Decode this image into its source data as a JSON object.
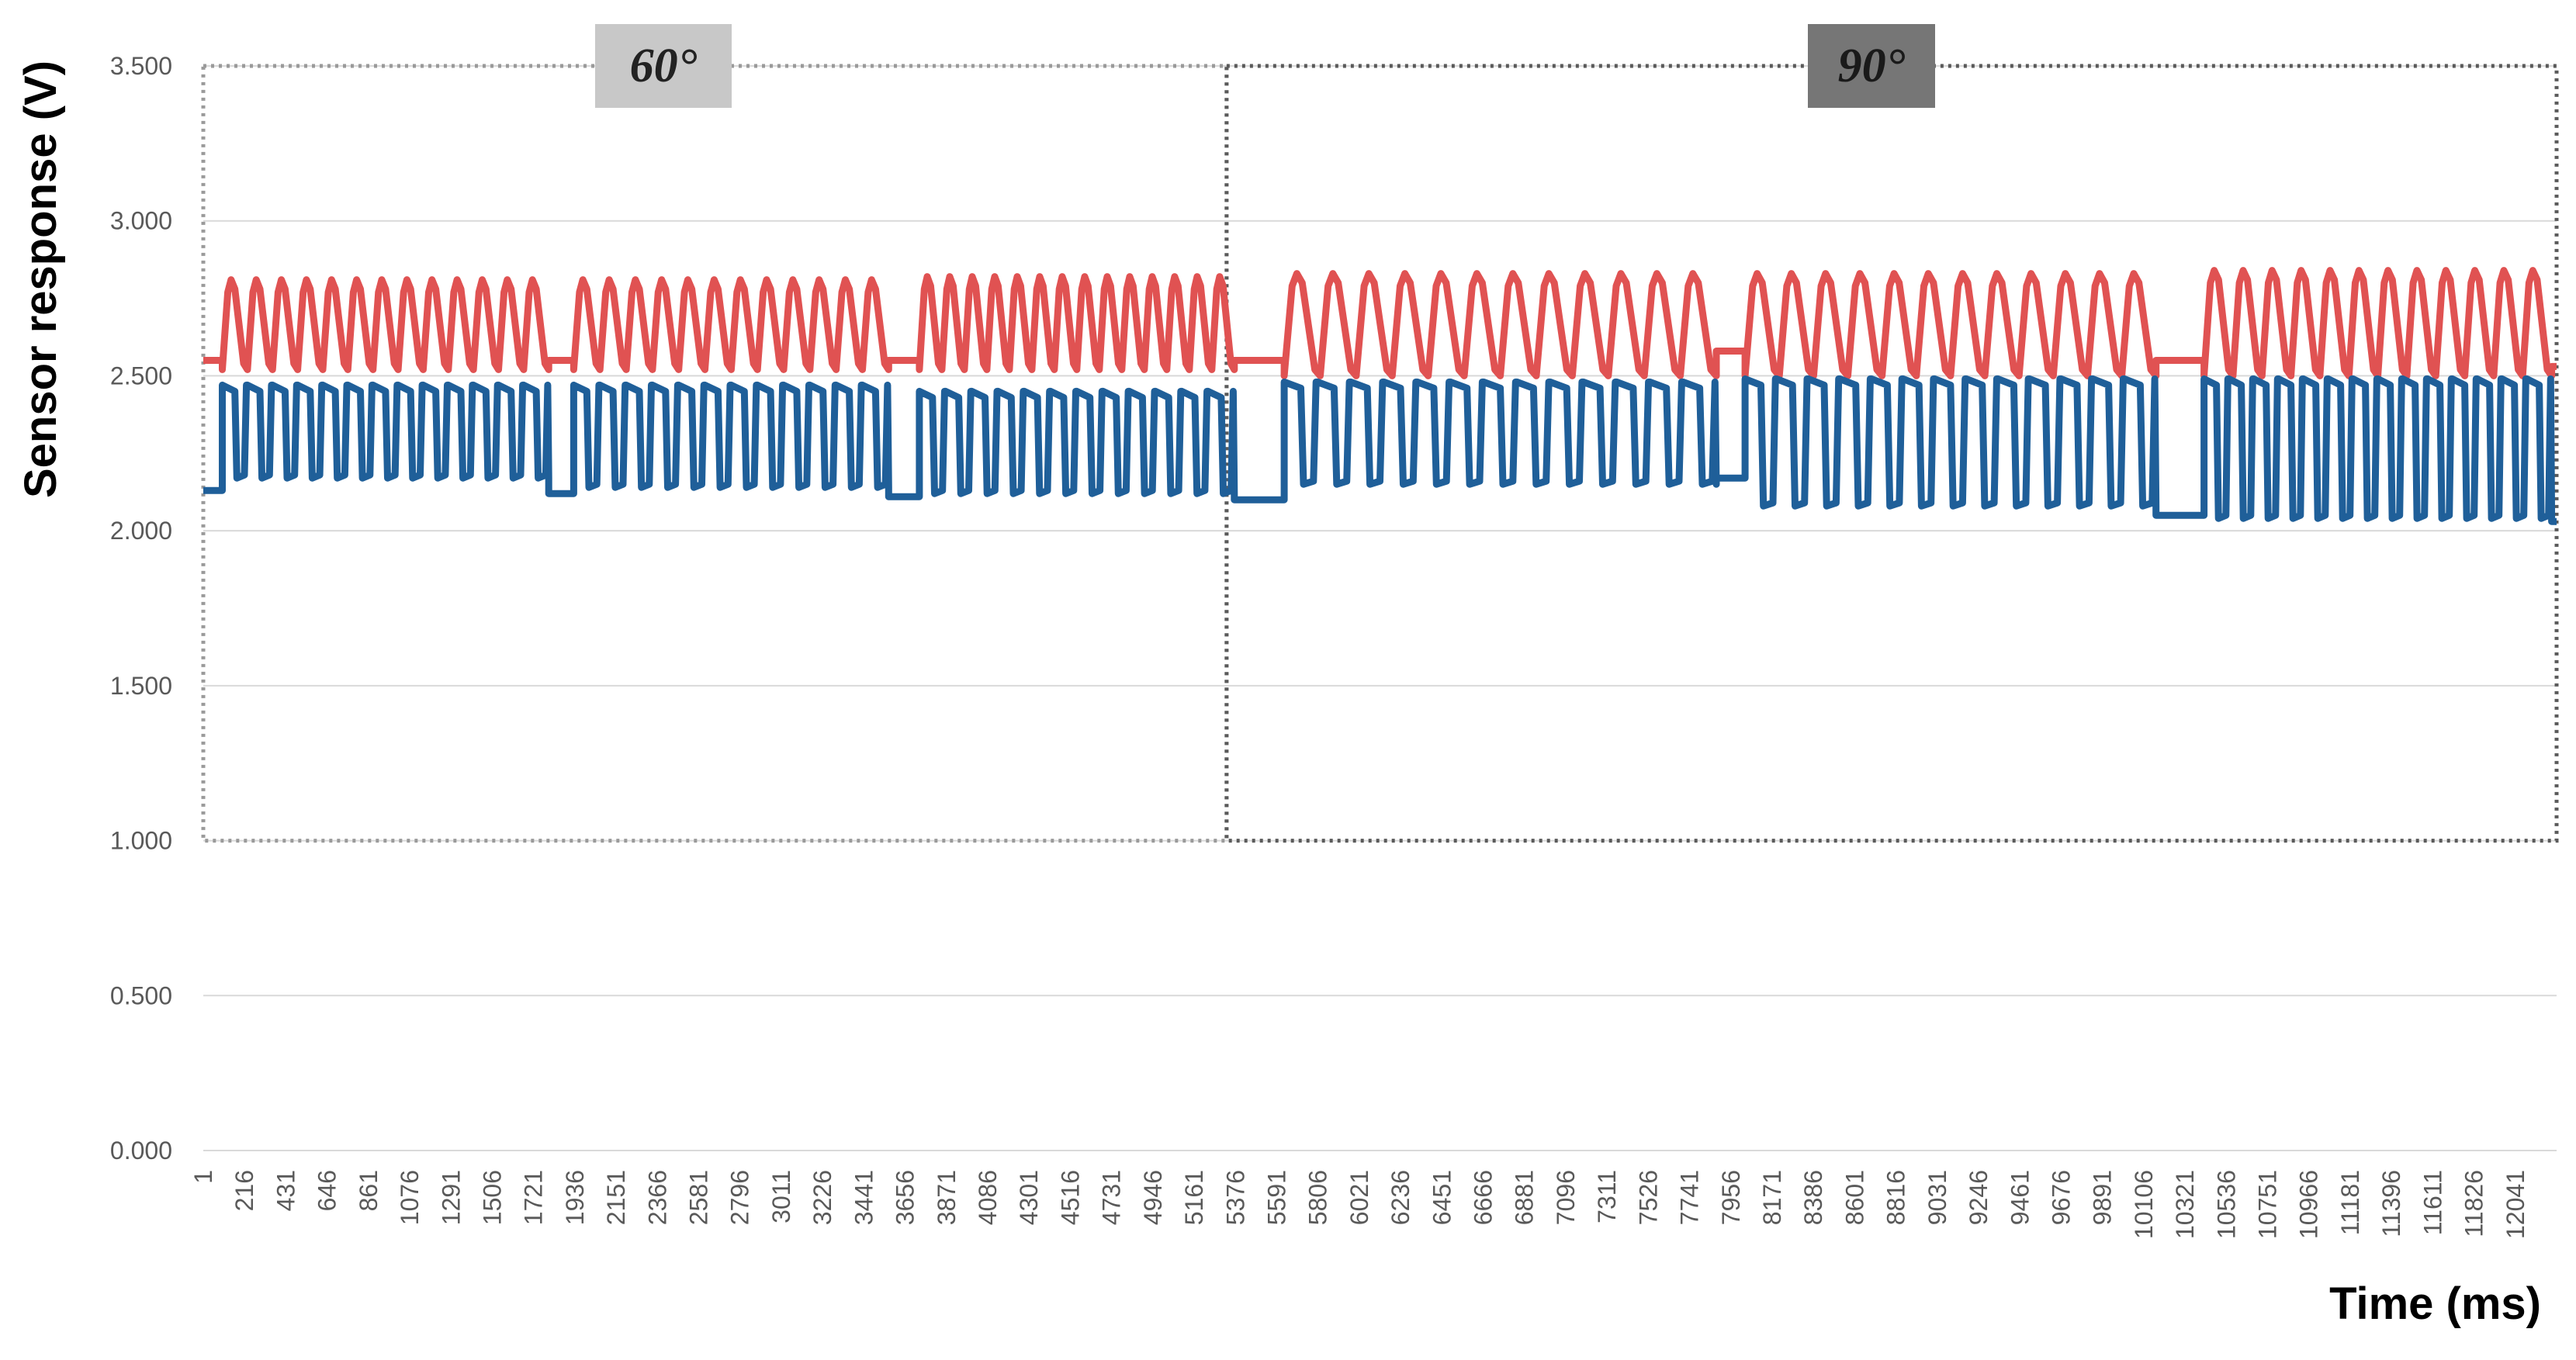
{
  "chart_data": {
    "type": "line",
    "title": "",
    "xlabel": "Time (ms)",
    "ylabel": "Sensor response (V)",
    "ylim": [
      0,
      3.5
    ],
    "yticks": [
      "0.000",
      "0.500",
      "1.000",
      "1.500",
      "2.000",
      "2.500",
      "3.000",
      "3.500"
    ],
    "xlim": [
      1,
      12256
    ],
    "xticks": [
      "1",
      "216",
      "431",
      "646",
      "861",
      "1076",
      "1291",
      "1506",
      "1721",
      "1936",
      "2151",
      "2366",
      "2581",
      "2796",
      "3011",
      "3226",
      "3441",
      "3656",
      "3871",
      "4086",
      "4301",
      "4516",
      "4731",
      "4946",
      "5161",
      "5376",
      "5591",
      "5806",
      "6021",
      "6236",
      "6451",
      "6666",
      "6881",
      "7096",
      "7311",
      "7526",
      "7741",
      "7956",
      "8171",
      "8386",
      "8601",
      "8816",
      "9031",
      "9246",
      "9461",
      "9676",
      "9891",
      "10106",
      "10321",
      "10536",
      "10751",
      "10966",
      "11181",
      "11396",
      "11611",
      "11826",
      "12041"
    ],
    "grid": "horizontal",
    "legend": "none",
    "colors": {
      "series_top": "#e05252",
      "series_bottom": "#1f5f99",
      "grid": "#d9d9d9",
      "region_60_bg": "#c8c8c8",
      "region_90_bg": "#767676"
    },
    "regions": [
      {
        "label": "60°",
        "x_start": 1,
        "x_end": 5330,
        "y_start": 1.0,
        "y_end": 3.5
      },
      {
        "label": "90°",
        "x_start": 5330,
        "x_end": 12256,
        "y_start": 1.0,
        "y_end": 3.5
      }
    ],
    "series": [
      {
        "baseline_segments": [
          [
            1,
            100,
            2.55
          ],
          [
            1800,
            1930,
            2.55
          ],
          [
            3570,
            3730,
            2.55
          ],
          [
            5370,
            5630,
            2.55
          ],
          [
            7880,
            8030,
            2.58
          ],
          [
            10170,
            10420,
            2.55
          ],
          [
            12230,
            12256,
            2.53
          ]
        ],
        "burst_segments": [
          {
            "x_start": 100,
            "x_end": 1800,
            "cycles": 13,
            "low": 2.52,
            "high": 2.81
          },
          {
            "x_start": 1930,
            "x_end": 3570,
            "cycles": 12,
            "low": 2.52,
            "high": 2.81
          },
          {
            "x_start": 3730,
            "x_end": 5370,
            "cycles": 14,
            "low": 2.52,
            "high": 2.82
          },
          {
            "x_start": 5630,
            "x_end": 7880,
            "cycles": 12,
            "low": 2.5,
            "high": 2.83
          },
          {
            "x_start": 8030,
            "x_end": 10170,
            "cycles": 12,
            "low": 2.5,
            "high": 2.83
          },
          {
            "x_start": 10420,
            "x_end": 12230,
            "cycles": 12,
            "low": 2.5,
            "high": 2.84
          }
        ]
      },
      {
        "baseline_segments": [
          [
            1,
            100,
            2.13
          ],
          [
            1800,
            1930,
            2.12
          ],
          [
            3570,
            3730,
            2.11
          ],
          [
            5370,
            5630,
            2.1
          ],
          [
            7880,
            8030,
            2.17
          ],
          [
            10170,
            10420,
            2.05
          ],
          [
            12230,
            12256,
            2.03
          ]
        ],
        "burst_segments": [
          {
            "x_start": 100,
            "x_end": 1800,
            "cycles": 13,
            "low": 2.17,
            "high": 2.47
          },
          {
            "x_start": 1930,
            "x_end": 3570,
            "cycles": 12,
            "low": 2.14,
            "high": 2.47
          },
          {
            "x_start": 3730,
            "x_end": 5370,
            "cycles": 12,
            "low": 2.12,
            "high": 2.45
          },
          {
            "x_start": 5630,
            "x_end": 7880,
            "cycles": 13,
            "low": 2.15,
            "high": 2.48
          },
          {
            "x_start": 8030,
            "x_end": 10170,
            "cycles": 13,
            "low": 2.08,
            "high": 2.49
          },
          {
            "x_start": 10420,
            "x_end": 12230,
            "cycles": 14,
            "low": 2.04,
            "high": 2.49
          }
        ]
      }
    ]
  }
}
